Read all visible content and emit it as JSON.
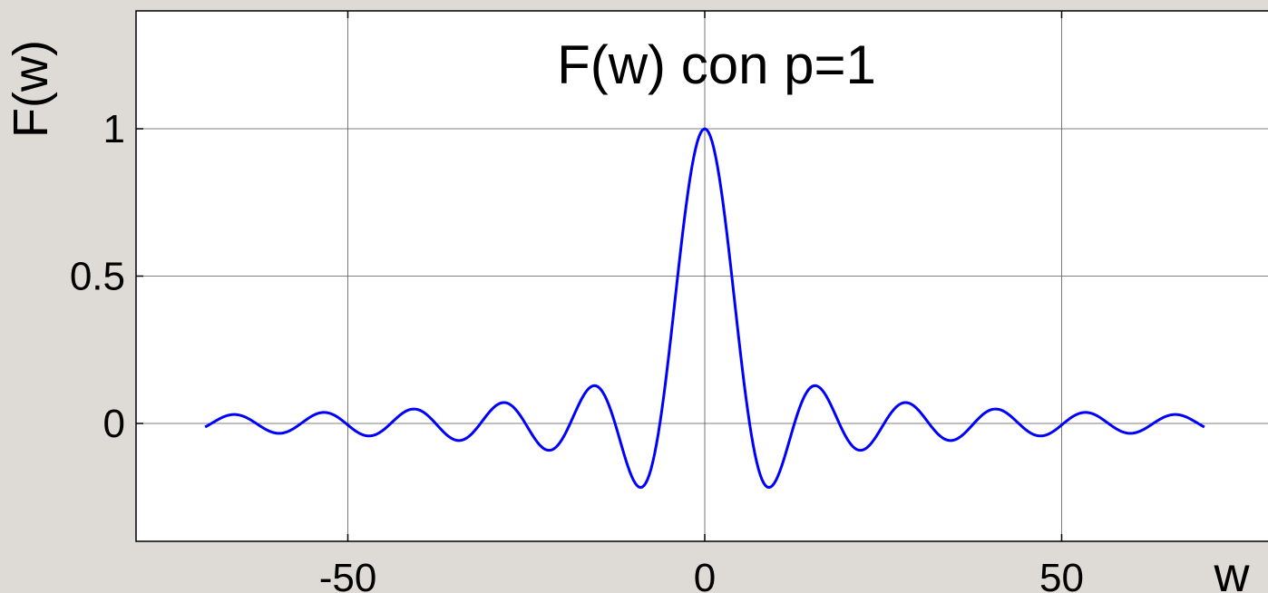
{
  "chart_data": {
    "type": "line",
    "title": "F(w) con p=1",
    "xlabel": "w",
    "ylabel": "F(w)",
    "xlim": [
      -80,
      80
    ],
    "ylim": [
      -0.4,
      1.4
    ],
    "x_ticks": [
      -50,
      0,
      50
    ],
    "x_tick_labels": [
      "-50",
      "0",
      "50"
    ],
    "y_ticks": [
      0,
      0.5,
      1
    ],
    "y_tick_labels": [
      "0",
      "0.5",
      "1"
    ],
    "grid": true,
    "line_color": "#0000ff",
    "background_color": "#ffffff",
    "function": "sin(w/2)/(w/2)",
    "series": [
      {
        "x_range": [
          -70,
          70
        ],
        "x_step": 0.25,
        "color": "#0000ff"
      }
    ]
  }
}
